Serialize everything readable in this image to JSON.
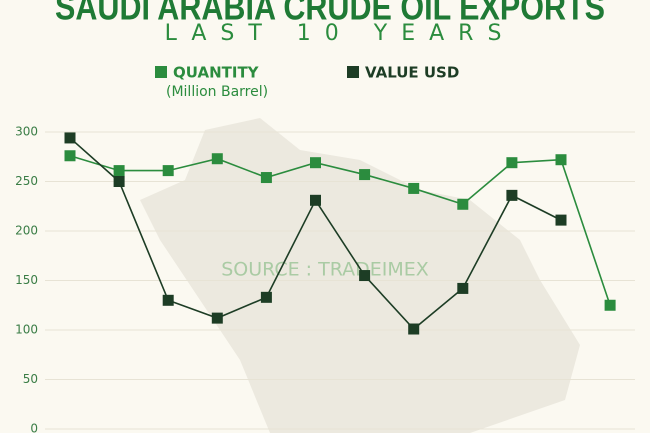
{
  "chart_data": {
    "type": "line",
    "title": "SAUDI ARABIA CRUDE OIL EXPORTS",
    "subtitle": "LAST 10 YEARS",
    "annotation": "SOURCE : TRADEIMEX",
    "categories": [
      null,
      null,
      null,
      null,
      null,
      null,
      null,
      null,
      null,
      null,
      null,
      null
    ],
    "series": [
      {
        "name": "QUANTITY",
        "unit": "(Million Barrel)",
        "color": "#2b8c3e",
        "values": [
          276,
          261,
          261,
          273,
          254,
          269,
          257,
          243,
          227,
          269,
          272,
          125
        ]
      },
      {
        "name": "VALUE USD",
        "color": "#1d3d25",
        "values": [
          294,
          250,
          130,
          112,
          133,
          231,
          155,
          101,
          142,
          236,
          211,
          null
        ]
      }
    ],
    "ylim": [
      0,
      300
    ],
    "yticks": [
      0,
      50,
      100,
      150,
      200,
      250,
      300
    ],
    "grid": true
  }
}
